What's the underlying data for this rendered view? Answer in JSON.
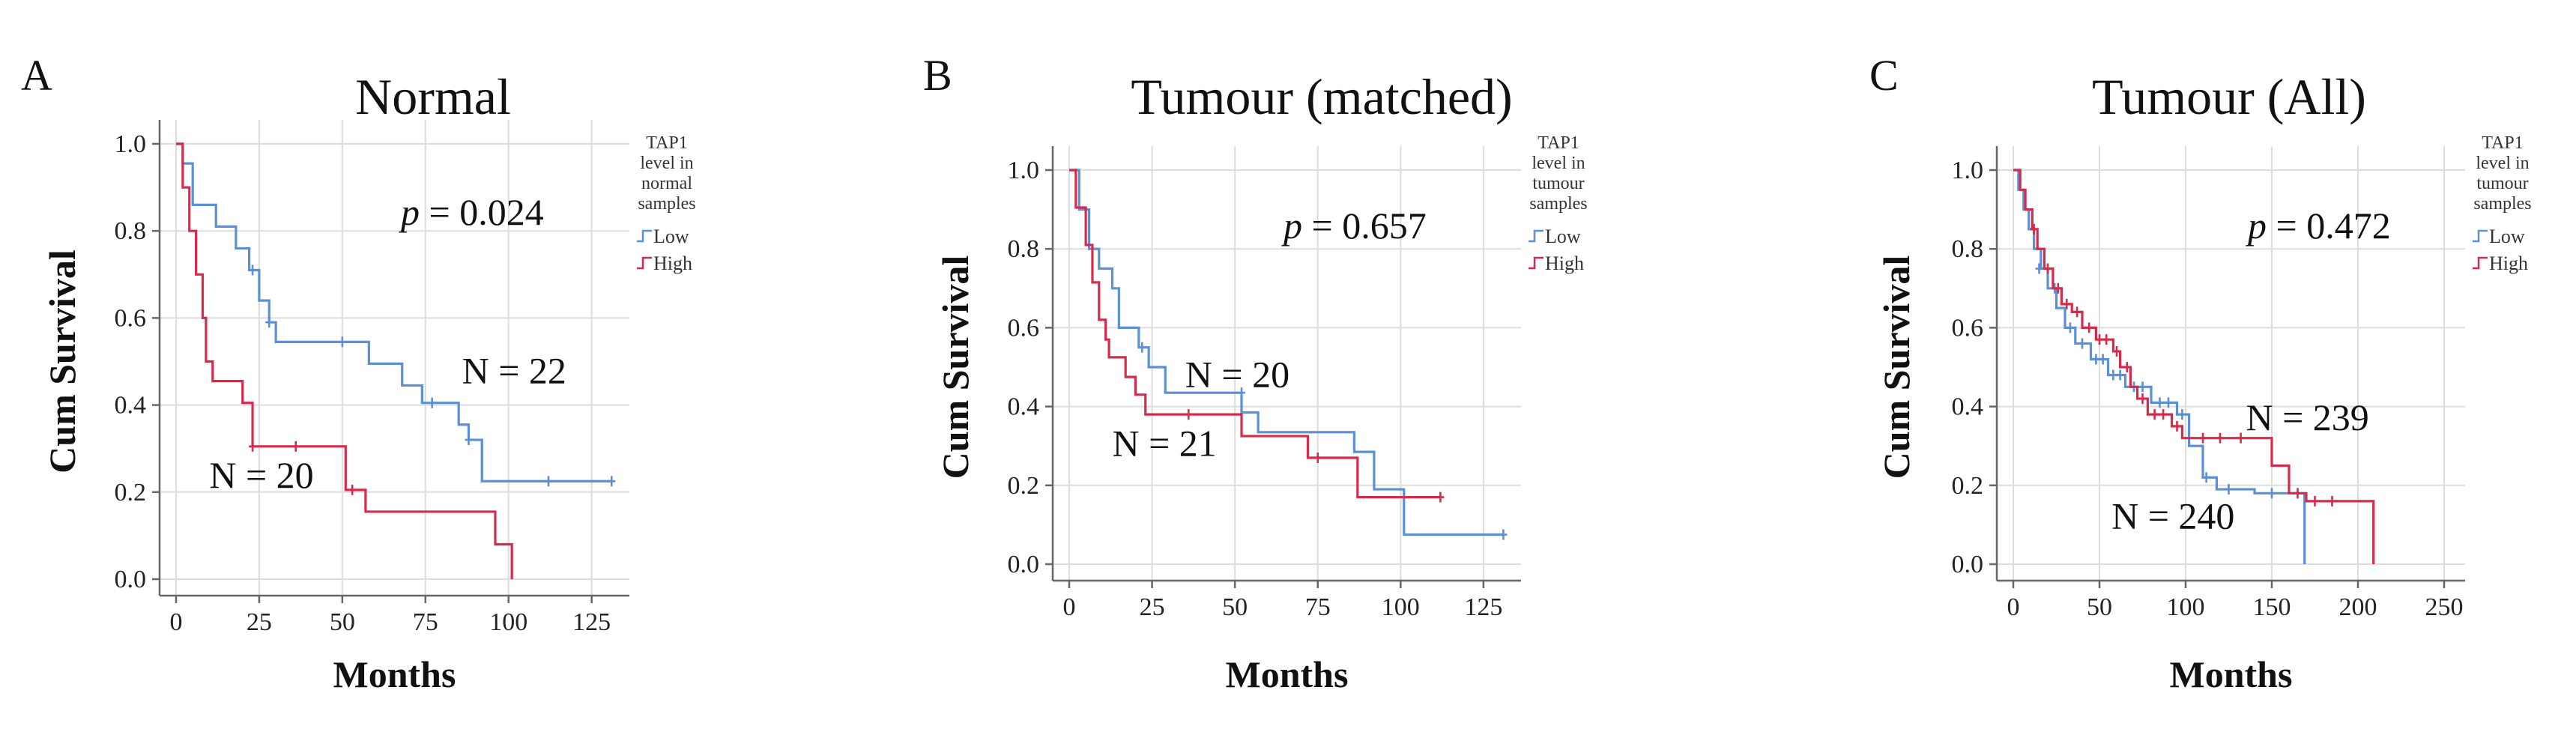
{
  "chart_data": [
    {
      "type": "line",
      "letter": "A",
      "title": "Normal",
      "xlabel": "Months",
      "ylabel": "Cum Survival",
      "xlim": [
        0,
        130
      ],
      "ylim": [
        0,
        1
      ],
      "xticks": [
        "0",
        "25",
        "50",
        "75",
        "100",
        "125"
      ],
      "yticks": [
        "0.0",
        "0.2",
        "0.4",
        "0.6",
        "0.8",
        "1.0"
      ],
      "grid": true,
      "legend_title": [
        "TAP1",
        "level in",
        "normal",
        "samples"
      ],
      "pvalue_prefix": "p",
      "pvalue_text": " = 0.024",
      "annotations": [
        {
          "text": "N = 22",
          "x": 86,
          "y": 0.45
        },
        {
          "text": "N = 20",
          "x": 10,
          "y": 0.21
        }
      ],
      "series": [
        {
          "name": "Low",
          "color": "#5b8fd6",
          "steps": [
            [
              0,
              1.0
            ],
            [
              2,
              0.955
            ],
            [
              5,
              0.86
            ],
            [
              12,
              0.81
            ],
            [
              18,
              0.76
            ],
            [
              22,
              0.71
            ],
            [
              25,
              0.64
            ],
            [
              28,
              0.59
            ],
            [
              30,
              0.545
            ],
            [
              58,
              0.495
            ],
            [
              68,
              0.445
            ],
            [
              74,
              0.405
            ],
            [
              85,
              0.355
            ],
            [
              88,
              0.32
            ],
            [
              92,
              0.225
            ],
            [
              131,
              0.225
            ]
          ],
          "censored": [
            [
              23,
              0.71
            ],
            [
              28,
              0.59
            ],
            [
              50,
              0.545
            ],
            [
              77,
              0.405
            ],
            [
              88,
              0.32
            ],
            [
              112,
              0.225
            ],
            [
              131,
              0.225
            ]
          ]
        },
        {
          "name": "High",
          "color": "#d62b4a",
          "steps": [
            [
              0,
              1.0
            ],
            [
              2,
              0.9
            ],
            [
              4,
              0.8
            ],
            [
              6,
              0.7
            ],
            [
              8,
              0.6
            ],
            [
              9,
              0.5
            ],
            [
              11,
              0.455
            ],
            [
              20,
              0.405
            ],
            [
              23,
              0.305
            ],
            [
              51,
              0.205
            ],
            [
              57,
              0.155
            ],
            [
              96,
              0.08
            ],
            [
              101,
              0.0
            ]
          ],
          "censored": [
            [
              23,
              0.305
            ],
            [
              36,
              0.305
            ],
            [
              53,
              0.205
            ]
          ]
        }
      ]
    },
    {
      "type": "line",
      "letter": "B",
      "title": "Tumour (matched)",
      "xlabel": "Months",
      "ylabel": "Cum Survival",
      "xlim": [
        0,
        130
      ],
      "ylim": [
        0,
        1
      ],
      "xticks": [
        "0",
        "25",
        "50",
        "75",
        "100",
        "125"
      ],
      "yticks": [
        "0.0",
        "0.2",
        "0.4",
        "0.6",
        "0.8",
        "1.0"
      ],
      "grid": true,
      "legend_title": [
        "TAP1",
        "level in",
        "tumour",
        "samples"
      ],
      "pvalue_prefix": "p",
      "pvalue_text": " = 0.657",
      "annotations": [
        {
          "text": "N = 20",
          "x": 35,
          "y": 0.45
        },
        {
          "text": "N = 21",
          "x": 13,
          "y": 0.275
        }
      ],
      "series": [
        {
          "name": "Low",
          "color": "#5b8fd6",
          "steps": [
            [
              0,
              1.0
            ],
            [
              3,
              0.9
            ],
            [
              6,
              0.8
            ],
            [
              9,
              0.75
            ],
            [
              13,
              0.7
            ],
            [
              15,
              0.6
            ],
            [
              21,
              0.55
            ],
            [
              24,
              0.5
            ],
            [
              29,
              0.435
            ],
            [
              52,
              0.385
            ],
            [
              57,
              0.335
            ],
            [
              86,
              0.285
            ],
            [
              92,
              0.19
            ],
            [
              101,
              0.075
            ],
            [
              131,
              0.075
            ]
          ],
          "censored": [
            [
              22,
              0.55
            ],
            [
              52,
              0.435
            ],
            [
              131,
              0.075
            ]
          ]
        },
        {
          "name": "High",
          "color": "#d62b4a",
          "steps": [
            [
              0,
              1.0
            ],
            [
              2,
              0.905
            ],
            [
              5,
              0.81
            ],
            [
              7,
              0.715
            ],
            [
              9,
              0.62
            ],
            [
              11,
              0.57
            ],
            [
              12,
              0.525
            ],
            [
              17,
              0.475
            ],
            [
              20,
              0.43
            ],
            [
              23,
              0.38
            ],
            [
              52,
              0.325
            ],
            [
              72,
              0.27
            ],
            [
              87,
              0.17
            ],
            [
              112,
              0.17
            ]
          ],
          "censored": [
            [
              36,
              0.38
            ],
            [
              75,
              0.27
            ],
            [
              112,
              0.17
            ]
          ]
        }
      ]
    },
    {
      "type": "line",
      "letter": "C",
      "title": "Tumour (All)",
      "xlabel": "Months",
      "ylabel": "Cum Survival",
      "xlim": [
        0,
        250
      ],
      "ylim": [
        0,
        1
      ],
      "xticks": [
        "0",
        "50",
        "100",
        "150",
        "200",
        "250"
      ],
      "yticks": [
        "0.0",
        "0.2",
        "0.4",
        "0.6",
        "0.8",
        "1.0"
      ],
      "grid": true,
      "legend_title": [
        "TAP1",
        "level in",
        "tumour",
        "samples"
      ],
      "pvalue_prefix": "p",
      "pvalue_text": " = 0.472",
      "annotations": [
        {
          "text": "N = 239",
          "x": 135,
          "y": 0.34
        },
        {
          "text": "N = 240",
          "x": 57,
          "y": 0.09
        }
      ],
      "series": [
        {
          "name": "Low",
          "color": "#5b8fd6",
          "steps": [
            [
              0,
              1.0
            ],
            [
              3,
              0.95
            ],
            [
              6,
              0.9
            ],
            [
              9,
              0.85
            ],
            [
              12,
              0.8
            ],
            [
              16,
              0.75
            ],
            [
              20,
              0.7
            ],
            [
              25,
              0.65
            ],
            [
              30,
              0.6
            ],
            [
              36,
              0.56
            ],
            [
              45,
              0.52
            ],
            [
              55,
              0.48
            ],
            [
              65,
              0.45
            ],
            [
              80,
              0.41
            ],
            [
              95,
              0.38
            ],
            [
              102,
              0.3
            ],
            [
              110,
              0.22
            ],
            [
              118,
              0.19
            ],
            [
              140,
              0.18
            ],
            [
              160,
              0.18
            ],
            [
              169,
              0.0
            ]
          ],
          "censored": [
            [
              15,
              0.75
            ],
            [
              24,
              0.7
            ],
            [
              33,
              0.6
            ],
            [
              40,
              0.56
            ],
            [
              48,
              0.52
            ],
            [
              52,
              0.52
            ],
            [
              58,
              0.48
            ],
            [
              62,
              0.48
            ],
            [
              70,
              0.45
            ],
            [
              75,
              0.45
            ],
            [
              85,
              0.41
            ],
            [
              90,
              0.41
            ],
            [
              98,
              0.38
            ],
            [
              112,
              0.22
            ],
            [
              125,
              0.19
            ],
            [
              150,
              0.18
            ]
          ]
        },
        {
          "name": "High",
          "color": "#d62b4a",
          "steps": [
            [
              0,
              1.0
            ],
            [
              4,
              0.95
            ],
            [
              7,
              0.9
            ],
            [
              11,
              0.85
            ],
            [
              14,
              0.8
            ],
            [
              18,
              0.75
            ],
            [
              23,
              0.7
            ],
            [
              28,
              0.66
            ],
            [
              34,
              0.64
            ],
            [
              40,
              0.6
            ],
            [
              48,
              0.57
            ],
            [
              58,
              0.54
            ],
            [
              62,
              0.5
            ],
            [
              68,
              0.45
            ],
            [
              72,
              0.42
            ],
            [
              78,
              0.38
            ],
            [
              92,
              0.35
            ],
            [
              98,
              0.32
            ],
            [
              150,
              0.25
            ],
            [
              160,
              0.18
            ],
            [
              170,
              0.16
            ],
            [
              208,
              0.16
            ],
            [
              209,
              0.0
            ]
          ],
          "censored": [
            [
              12,
              0.85
            ],
            [
              20,
              0.75
            ],
            [
              26,
              0.7
            ],
            [
              31,
              0.66
            ],
            [
              37,
              0.64
            ],
            [
              44,
              0.6
            ],
            [
              50,
              0.57
            ],
            [
              54,
              0.57
            ],
            [
              60,
              0.54
            ],
            [
              66,
              0.5
            ],
            [
              75,
              0.42
            ],
            [
              82,
              0.38
            ],
            [
              87,
              0.38
            ],
            [
              95,
              0.35
            ],
            [
              110,
              0.32
            ],
            [
              120,
              0.32
            ],
            [
              132,
              0.32
            ],
            [
              165,
              0.18
            ],
            [
              175,
              0.16
            ],
            [
              185,
              0.16
            ]
          ]
        }
      ]
    }
  ]
}
